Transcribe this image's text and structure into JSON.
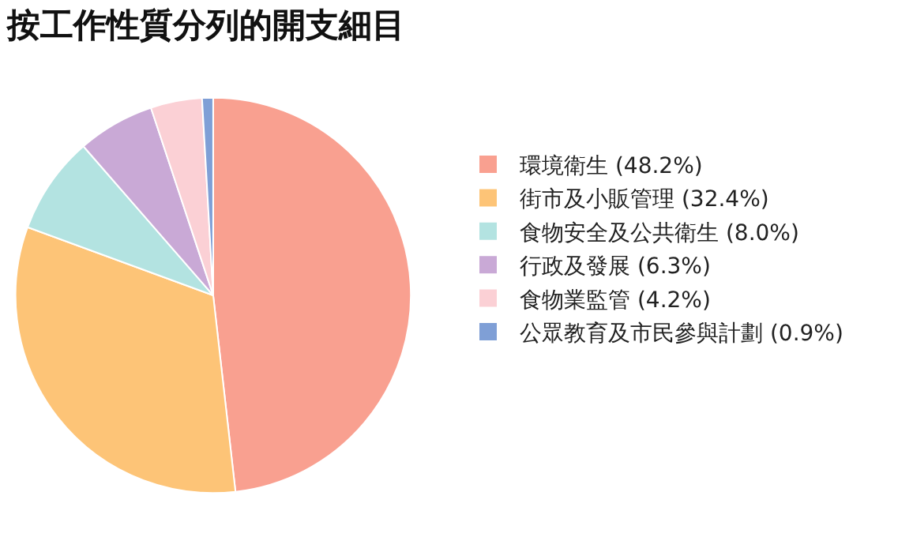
{
  "chart_data": {
    "type": "pie",
    "title": "按工作性質分列的開支細目",
    "categories": [
      "環境衛生 (48.2%)",
      "街市及小販管理 (32.4%)",
      "食物安全及公共衛生 (8.0%)",
      "行政及發展 (6.3%)",
      "食物業監管 (4.2%)",
      "公眾教育及市民參與計劃 (0.9%)"
    ],
    "values": [
      48.2,
      32.4,
      8.0,
      6.3,
      4.2,
      0.9
    ],
    "colors": [
      "#f9a090",
      "#fdc477",
      "#b3e3e1",
      "#c9a9d6",
      "#fbd0d5",
      "#7f9fd6"
    ],
    "legend": "right"
  }
}
